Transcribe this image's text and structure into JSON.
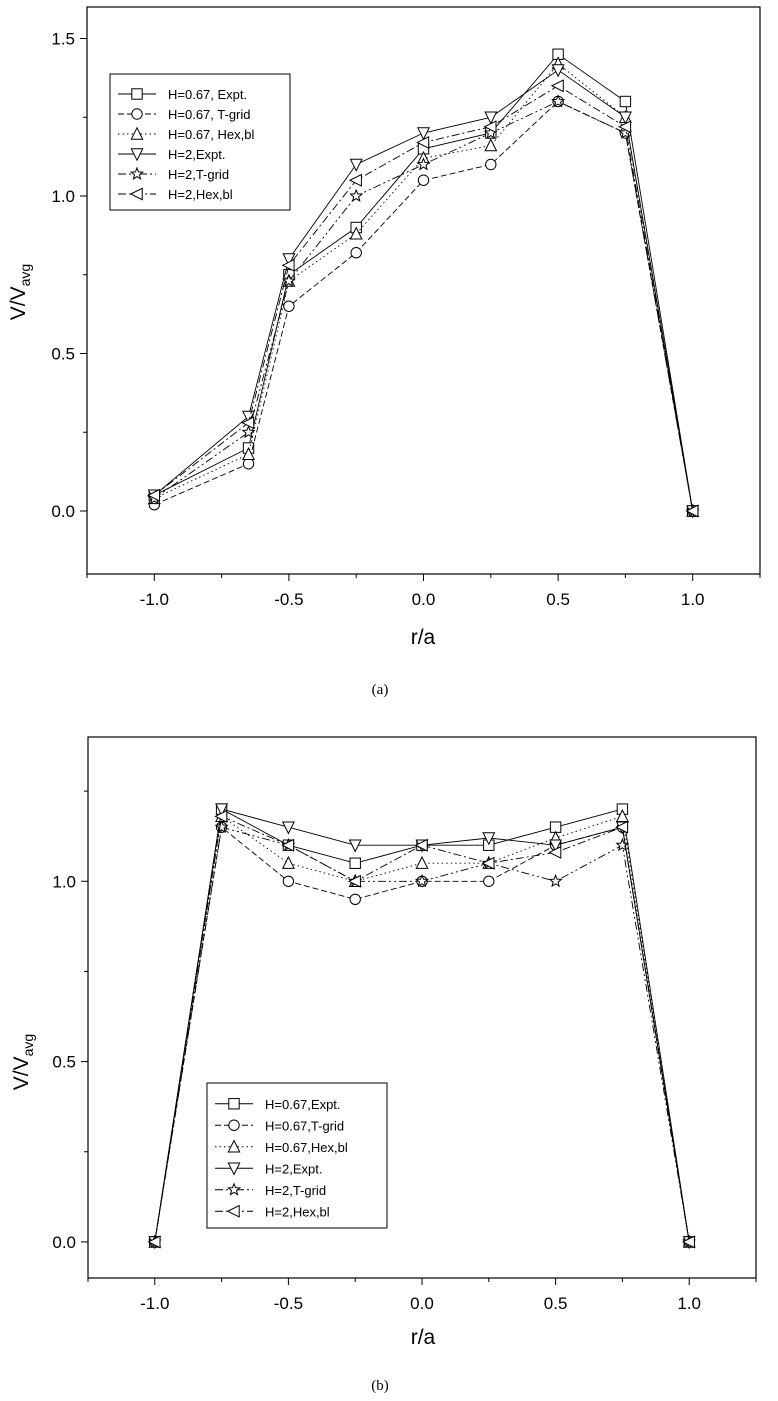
{
  "chart_data": [
    {
      "type": "line",
      "panel_label": "(a)",
      "xlabel": "r/a",
      "ylabel_main": "V/V",
      "ylabel_sub": "avg",
      "xlim": [
        -1.25,
        1.25
      ],
      "ylim": [
        -0.2,
        1.6
      ],
      "xticks": [
        -1.0,
        -0.5,
        0.0,
        0.5,
        1.0
      ],
      "xtick_labels": [
        "-1.0",
        "-0.5",
        "0.0",
        "0.5",
        "1.0"
      ],
      "yticks": [
        0.0,
        0.5,
        1.0,
        1.5
      ],
      "ytick_labels": [
        "0.0",
        "0.5",
        "1.0",
        "1.5"
      ],
      "grid": false,
      "legend_position": "top-left",
      "x": [
        -1.0,
        -0.65,
        -0.5,
        -0.25,
        0.0,
        0.25,
        0.5,
        0.75,
        1.0
      ],
      "series": [
        {
          "name": "H=0.67, Expt.",
          "marker": "square",
          "dash": "solid",
          "values": [
            0.05,
            0.2,
            0.75,
            0.9,
            1.15,
            1.2,
            1.45,
            1.3,
            0.0
          ]
        },
        {
          "name": "H=0.67, T-grid",
          "marker": "circle",
          "dash": "dashed",
          "values": [
            0.02,
            0.15,
            0.65,
            0.82,
            1.05,
            1.1,
            1.3,
            1.2,
            0.0
          ]
        },
        {
          "name": "H=0.67, Hex,bl",
          "marker": "triangle-up",
          "dash": "dotted",
          "values": [
            0.04,
            0.18,
            0.73,
            0.88,
            1.12,
            1.16,
            1.42,
            1.25,
            0.0
          ]
        },
        {
          "name": "H=2,Expt.",
          "marker": "triangle-down",
          "dash": "solid",
          "values": [
            0.05,
            0.3,
            0.8,
            1.1,
            1.2,
            1.25,
            1.4,
            1.25,
            0.0
          ]
        },
        {
          "name": "H=2,T-grid",
          "marker": "star",
          "dash": "dashdotdot",
          "values": [
            0.04,
            0.25,
            0.73,
            1.0,
            1.1,
            1.2,
            1.3,
            1.2,
            0.0
          ]
        },
        {
          "name": "H=2,Hex,bl",
          "marker": "triangle-left",
          "dash": "dashdot",
          "values": [
            0.05,
            0.28,
            0.78,
            1.05,
            1.17,
            1.22,
            1.35,
            1.22,
            0.0
          ]
        }
      ]
    },
    {
      "type": "line",
      "panel_label": "(b)",
      "xlabel": "r/a",
      "ylabel_main": "V/V",
      "ylabel_sub": "avg",
      "xlim": [
        -1.25,
        1.25
      ],
      "ylim": [
        -0.1,
        1.4
      ],
      "xticks": [
        -1.0,
        -0.5,
        0.0,
        0.5,
        1.0
      ],
      "xtick_labels": [
        "-1.0",
        "-0.5",
        "0.0",
        "0.5",
        "1.0"
      ],
      "yticks": [
        0.0,
        0.5,
        1.0
      ],
      "ytick_labels": [
        "0.0",
        "0.5",
        "1.0"
      ],
      "grid": false,
      "legend_position": "bottom-left",
      "x": [
        -1.0,
        -0.75,
        -0.5,
        -0.25,
        0.0,
        0.25,
        0.5,
        0.75,
        1.0
      ],
      "series": [
        {
          "name": "H=0.67,Expt.",
          "marker": "square",
          "dash": "solid",
          "values": [
            0.0,
            1.2,
            1.1,
            1.05,
            1.1,
            1.1,
            1.15,
            1.2,
            0.0
          ]
        },
        {
          "name": "H=0.67,T-grid",
          "marker": "circle",
          "dash": "dashed",
          "values": [
            0.0,
            1.15,
            1.0,
            0.95,
            1.0,
            1.0,
            1.1,
            1.15,
            0.0
          ]
        },
        {
          "name": "H=0.67,Hex,bl",
          "marker": "triangle-up",
          "dash": "dotted",
          "values": [
            0.0,
            1.18,
            1.05,
            1.0,
            1.05,
            1.05,
            1.12,
            1.18,
            0.0
          ]
        },
        {
          "name": "H=2,Expt.",
          "marker": "triangle-down",
          "dash": "solid",
          "values": [
            0.0,
            1.2,
            1.15,
            1.1,
            1.1,
            1.12,
            1.1,
            1.15,
            0.0
          ]
        },
        {
          "name": "H=2,T-grid",
          "marker": "star",
          "dash": "dashdotdot",
          "values": [
            0.0,
            1.15,
            1.1,
            1.0,
            1.0,
            1.05,
            1.0,
            1.1,
            0.0
          ]
        },
        {
          "name": "H=2,Hex,bl",
          "marker": "triangle-left",
          "dash": "dashdot",
          "values": [
            0.0,
            1.18,
            1.1,
            1.0,
            1.1,
            1.05,
            1.08,
            1.15,
            0.0
          ]
        }
      ]
    }
  ]
}
